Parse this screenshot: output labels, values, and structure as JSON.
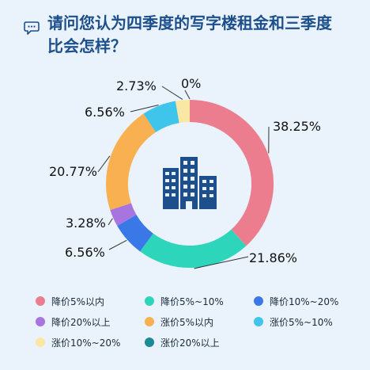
{
  "title": [
    "请问您认为四季度的写字楼租金和三季度",
    "比会怎样？"
  ],
  "icons": {
    "title": "chat-bubble-icon",
    "center": "office-building-icon"
  },
  "chart_data": {
    "type": "pie",
    "style": "donut",
    "title": "请问您认为四季度的写字楼租金和三季度比会怎样？",
    "legend_position": "bottom",
    "slices": [
      {
        "label": "降价5%以内",
        "value": 38.25,
        "value_label": "38.25%",
        "color": "#ec7d8e"
      },
      {
        "label": "降价5%~10%",
        "value": 21.86,
        "value_label": "21.86%",
        "color": "#2dd6bb"
      },
      {
        "label": "降价10%~20%",
        "value": 6.56,
        "value_label": "6.56%",
        "color": "#3b78e7"
      },
      {
        "label": "降价20%以上",
        "value": 3.28,
        "value_label": "3.28%",
        "color": "#a874e0"
      },
      {
        "label": "涨价5%以内",
        "value": 20.77,
        "value_label": "20.77%",
        "color": "#f8b050"
      },
      {
        "label": "涨价5%~10%",
        "value": 6.56,
        "value_label": "6.56%",
        "color": "#3fc4ec"
      },
      {
        "label": "涨价10%~20%",
        "value": 2.73,
        "value_label": "2.73%",
        "color": "#fbe7a4"
      },
      {
        "label": "涨价20%以上",
        "value": 0,
        "value_label": "0%",
        "color": "#1b8b95"
      }
    ]
  }
}
